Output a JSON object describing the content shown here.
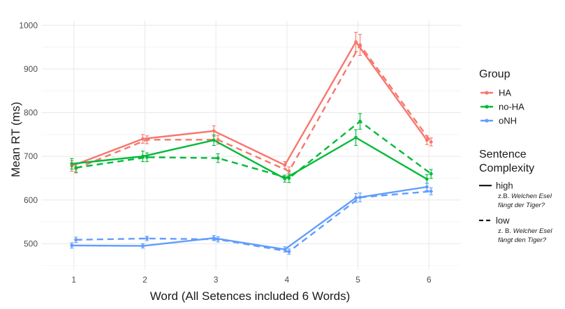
{
  "chart_data": {
    "type": "line",
    "title": "",
    "xlabel": "Word (All Setences included 6 Words)",
    "ylabel": "Mean RT (ms)",
    "x": [
      1,
      2,
      3,
      4,
      5,
      6
    ],
    "xticks": [
      "1",
      "2",
      "3",
      "4",
      "5",
      "6"
    ],
    "ylim": [
      440,
      1010
    ],
    "yticks": [
      500,
      600,
      700,
      800,
      900,
      1000
    ],
    "grid": true,
    "legend_placement": "right",
    "group_legend": {
      "title": "Group",
      "entries": [
        {
          "label": "HA",
          "color": "#F8766D"
        },
        {
          "label": "no-HA",
          "color": "#00BA38"
        },
        {
          "label": "oNH",
          "color": "#619CFF"
        }
      ]
    },
    "complexity_legend": {
      "title_line1": "Sentence",
      "title_line2": "Complexity",
      "entries": [
        {
          "label": "high",
          "linestyle": "solid",
          "example_prefix": "z.B. ",
          "example_italic1": "Welchen Esel",
          "example_italic2": "fängt der Tiger?"
        },
        {
          "label": "low",
          "linestyle": "dashed",
          "example_prefix": "z. B. ",
          "example_italic1": "Welcher Esel",
          "example_italic2": "fängt den Tiger?"
        }
      ]
    },
    "series": [
      {
        "group": "HA",
        "complexity": "high",
        "color": "#F8766D",
        "values": [
          678,
          740,
          758,
          680,
          962,
          737
        ],
        "errors": [
          12,
          10,
          12,
          8,
          22,
          10
        ]
      },
      {
        "group": "HA",
        "complexity": "low",
        "color": "#F8766D",
        "values": [
          672,
          738,
          738,
          666,
          955,
          733
        ],
        "errors": [
          10,
          9,
          10,
          10,
          24,
          9
        ]
      },
      {
        "group": "no-HA",
        "complexity": "high",
        "color": "#00BA38",
        "values": [
          683,
          700,
          737,
          649,
          743,
          648
        ],
        "errors": [
          12,
          12,
          12,
          8,
          18,
          10
        ]
      },
      {
        "group": "no-HA",
        "complexity": "low",
        "color": "#00BA38",
        "values": [
          674,
          698,
          696,
          650,
          780,
          660
        ],
        "errors": [
          10,
          10,
          10,
          10,
          18,
          10
        ]
      },
      {
        "group": "oNH",
        "complexity": "high",
        "color": "#619CFF",
        "values": [
          496,
          495,
          513,
          487,
          605,
          630
        ],
        "errors": [
          6,
          5,
          6,
          6,
          10,
          8
        ]
      },
      {
        "group": "oNH",
        "complexity": "low",
        "color": "#619CFF",
        "values": [
          509,
          512,
          510,
          482,
          606,
          620
        ],
        "errors": [
          6,
          5,
          6,
          6,
          10,
          8
        ]
      }
    ]
  }
}
